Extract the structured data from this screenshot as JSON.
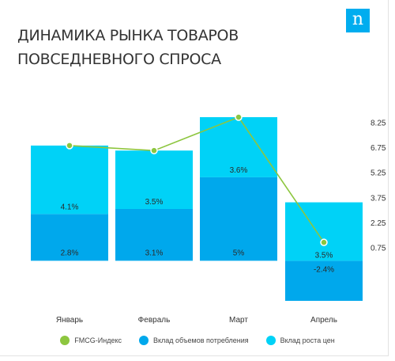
{
  "brand": {
    "logo_text": "n",
    "logo_color": "#00adef"
  },
  "title": "ДИНАМИКА РЫНКА ТОВАРОВ ПОВСЕДНЕВНОГО СПРОСА",
  "legend": {
    "line": "FMCG-Индекс",
    "volume": "Вклад объемов потребления",
    "price": "Вклад роста цен"
  },
  "colors": {
    "volume": "#00a8ec",
    "price": "#00d2f7",
    "line": "#8dc63f",
    "text": "#333333"
  },
  "chart_data": {
    "type": "bar",
    "stacked": true,
    "categories": [
      "Январь",
      "Февраль",
      "Март",
      "Апрель"
    ],
    "series": [
      {
        "name": "Вклад объемов потребления",
        "values": [
          2.8,
          3.1,
          5,
          -2.4
        ],
        "labels": [
          "2.8%",
          "3.1%",
          "5%",
          "-2.4%"
        ]
      },
      {
        "name": "Вклад роста цен",
        "values": [
          4.1,
          3.5,
          3.6,
          3.5
        ],
        "labels": [
          "4.1%",
          "3.5%",
          "3.6%",
          "3.5%"
        ]
      }
    ],
    "line": {
      "name": "FMCG-Индекс",
      "values": [
        6.9,
        6.6,
        8.6,
        1.1
      ]
    },
    "y_ticks": [
      "8.25",
      "6.75",
      "5.25",
      "3.75",
      "2.25",
      "0.75"
    ],
    "y_tick_values": [
      8.25,
      6.75,
      5.25,
      3.75,
      2.25,
      0.75
    ],
    "ylim": [
      -2.4,
      8.6
    ],
    "y_axis_position": "right",
    "grid": false,
    "legend_position": "bottom"
  }
}
